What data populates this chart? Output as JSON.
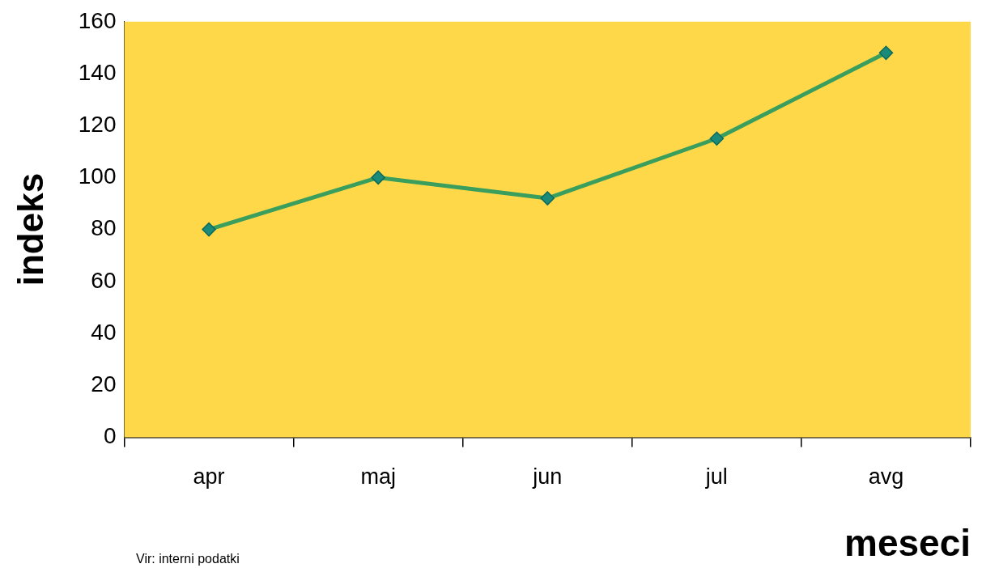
{
  "chart_data": {
    "type": "line",
    "xlabel": "meseci",
    "ylabel": "indeks",
    "categories": [
      "apr",
      "maj",
      "jun",
      "jul",
      "avg"
    ],
    "series": [
      {
        "color": "#3a9e5c",
        "values": [
          80,
          100,
          92,
          115,
          148
        ]
      }
    ],
    "ylim": [
      0,
      160
    ],
    "yticks": [
      0,
      20,
      40,
      60,
      80,
      100,
      120,
      140,
      160
    ],
    "marker": "diamond",
    "grid": false,
    "legend": false,
    "annotations": [
      "Vir: interni podatki"
    ]
  }
}
